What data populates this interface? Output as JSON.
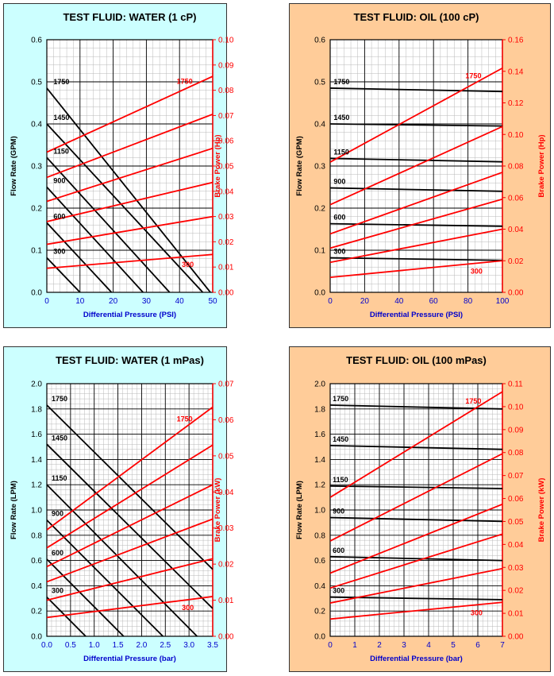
{
  "colors": {
    "water_bg": "#ccffff",
    "oil_bg": "#ffcc99",
    "flow": "#000000",
    "power": "#ff0000",
    "axis_blue": "#0000cc"
  },
  "chart_data": [
    {
      "type": "line",
      "title": "TEST FLUID:  WATER (1 cP)",
      "xlabel": "Differential Pressure (PSI)",
      "ylabel": "Flow Rate (GPM)",
      "y2label": "Brake Power (Hp)",
      "xlim": [
        0,
        50
      ],
      "ylim": [
        0,
        0.6
      ],
      "y2lim": [
        0,
        0.1
      ],
      "xticks": [
        "0",
        "10",
        "20",
        "30",
        "40",
        "50"
      ],
      "yticks": [
        "0.0",
        "0.1",
        "0.2",
        "0.3",
        "0.4",
        "0.5",
        "0.6"
      ],
      "y2ticks": [
        "0.00",
        "0.01",
        "0.02",
        "0.03",
        "0.04",
        "0.05",
        "0.06",
        "0.07",
        "0.08",
        "0.09",
        "0.10"
      ],
      "grid": true,
      "flow_series": [
        {
          "name": "1750",
          "x": [
            0,
            49.3
          ],
          "y": [
            0.485,
            0
          ]
        },
        {
          "name": "1450",
          "x": [
            0,
            47
          ],
          "y": [
            0.4,
            0
          ]
        },
        {
          "name": "1150",
          "x": [
            0,
            37
          ],
          "y": [
            0.32,
            0
          ]
        },
        {
          "name": "900",
          "x": [
            0,
            29
          ],
          "y": [
            0.25,
            0
          ]
        },
        {
          "name": "600",
          "x": [
            0,
            19.5
          ],
          "y": [
            0.165,
            0
          ]
        },
        {
          "name": "300",
          "x": [
            0,
            10
          ],
          "y": [
            0.082,
            0
          ]
        }
      ],
      "power_series": [
        {
          "name": "1750",
          "x": [
            0,
            50
          ],
          "y": [
            0.0555,
            0.0855
          ]
        },
        {
          "name": "1450",
          "x": [
            0,
            50
          ],
          "y": [
            0.0455,
            0.0705
          ]
        },
        {
          "name": "1150",
          "x": [
            0,
            50
          ],
          "y": [
            0.036,
            0.057
          ]
        },
        {
          "name": "900",
          "x": [
            0,
            50
          ],
          "y": [
            0.028,
            0.0435
          ]
        },
        {
          "name": "600",
          "x": [
            0,
            50
          ],
          "y": [
            0.019,
            0.03
          ]
        },
        {
          "name": "300",
          "x": [
            0,
            50
          ],
          "y": [
            0.0095,
            0.015
          ]
        }
      ],
      "flow_label_x": 2,
      "power_label_top": "1750",
      "power_label_bottom": "300"
    },
    {
      "type": "line",
      "title": "TEST FLUID:  OIL (100 cP)",
      "xlabel": "Differential Pressure (PSI)",
      "ylabel": "Flow Rate (GPM)",
      "y2label": "Brake Power (Hp)",
      "xlim": [
        0,
        100
      ],
      "ylim": [
        0,
        0.6
      ],
      "y2lim": [
        0,
        0.16
      ],
      "xticks": [
        "0",
        "20",
        "40",
        "60",
        "80",
        "100"
      ],
      "yticks": [
        "0.0",
        "0.1",
        "0.2",
        "0.3",
        "0.4",
        "0.5",
        "0.6"
      ],
      "y2ticks": [
        "0.00",
        "0.02",
        "0.04",
        "0.06",
        "0.08",
        "0.10",
        "0.12",
        "0.14",
        "0.16"
      ],
      "grid": true,
      "flow_series": [
        {
          "name": "1750",
          "x": [
            0,
            100
          ],
          "y": [
            0.485,
            0.477
          ]
        },
        {
          "name": "1450",
          "x": [
            0,
            100
          ],
          "y": [
            0.4,
            0.395
          ]
        },
        {
          "name": "1150",
          "x": [
            0,
            100
          ],
          "y": [
            0.318,
            0.31
          ]
        },
        {
          "name": "900",
          "x": [
            0,
            100
          ],
          "y": [
            0.248,
            0.24
          ]
        },
        {
          "name": "600",
          "x": [
            0,
            100
          ],
          "y": [
            0.163,
            0.157
          ]
        },
        {
          "name": "300",
          "x": [
            0,
            100
          ],
          "y": [
            0.082,
            0.076
          ]
        }
      ],
      "power_series": [
        {
          "name": "1750",
          "x": [
            0,
            100
          ],
          "y": [
            0.0825,
            0.142
          ]
        },
        {
          "name": "1450",
          "x": [
            0,
            100
          ],
          "y": [
            0.0555,
            0.105
          ]
        },
        {
          "name": "1150",
          "x": [
            0,
            100
          ],
          "y": [
            0.037,
            0.076
          ]
        },
        {
          "name": "900",
          "x": [
            0,
            100
          ],
          "y": [
            0.028,
            0.059
          ]
        },
        {
          "name": "600",
          "x": [
            0,
            100
          ],
          "y": [
            0.019,
            0.04
          ]
        },
        {
          "name": "300",
          "x": [
            0,
            100
          ],
          "y": [
            0.0095,
            0.02
          ]
        }
      ],
      "flow_label_x": 2,
      "power_label_top": "1750",
      "power_label_bottom": "300"
    },
    {
      "type": "line",
      "title": "TEST FLUID:  WATER (1 mPas)",
      "xlabel": "Differential Pressure (bar)",
      "ylabel": "Flow Rate (LPM)",
      "y2label": "Brake Power (kW)",
      "xlim": [
        0,
        3.5
      ],
      "ylim": [
        0,
        2.0
      ],
      "y2lim": [
        0,
        0.07
      ],
      "xticks": [
        "0.0",
        "0.5",
        "1.0",
        "1.5",
        "2.0",
        "2.5",
        "3.0",
        "3.5"
      ],
      "yticks": [
        "0.0",
        "0.2",
        "0.4",
        "0.6",
        "0.8",
        "1.0",
        "1.2",
        "1.4",
        "1.6",
        "1.8",
        "2.0"
      ],
      "y2ticks": [
        "0.00",
        "0.01",
        "0.02",
        "0.03",
        "0.04",
        "0.05",
        "0.06",
        "0.07"
      ],
      "grid": true,
      "flow_series": [
        {
          "name": "1750",
          "x": [
            0,
            3.5
          ],
          "y": [
            1.83,
            0.53
          ]
        },
        {
          "name": "1450",
          "x": [
            0,
            3.5
          ],
          "y": [
            1.52,
            0.22
          ]
        },
        {
          "name": "1150",
          "x": [
            0,
            3.17
          ],
          "y": [
            1.2,
            0
          ]
        },
        {
          "name": "900",
          "x": [
            0,
            2.45
          ],
          "y": [
            0.92,
            0
          ]
        },
        {
          "name": "600",
          "x": [
            0,
            1.62
          ],
          "y": [
            0.61,
            0
          ]
        },
        {
          "name": "300",
          "x": [
            0,
            0.82
          ],
          "y": [
            0.31,
            0
          ]
        }
      ],
      "power_series": [
        {
          "name": "1750",
          "x": [
            0,
            3.5
          ],
          "y": [
            0.0295,
            0.0635
          ]
        },
        {
          "name": "1450",
          "x": [
            0,
            3.5
          ],
          "y": [
            0.0245,
            0.053
          ]
        },
        {
          "name": "1150",
          "x": [
            0,
            3.5
          ],
          "y": [
            0.0193,
            0.042
          ]
        },
        {
          "name": "900",
          "x": [
            0,
            3.5
          ],
          "y": [
            0.0151,
            0.0325
          ]
        },
        {
          "name": "600",
          "x": [
            0,
            3.5
          ],
          "y": [
            0.01,
            0.0215
          ]
        },
        {
          "name": "300",
          "x": [
            0,
            3.5
          ],
          "y": [
            0.0052,
            0.011
          ]
        }
      ],
      "flow_label_x": 0.1,
      "power_label_top": "1750",
      "power_label_bottom": "300"
    },
    {
      "type": "line",
      "title": "TEST FLUID:  OIL (100 mPas)",
      "xlabel": "Differential Pressure (bar)",
      "ylabel": "Flow Rate (LPM)",
      "y2label": "Brake Power (kW)",
      "xlim": [
        0,
        7
      ],
      "ylim": [
        0,
        2.0
      ],
      "y2lim": [
        0,
        0.11
      ],
      "xticks": [
        "0",
        "1",
        "2",
        "3",
        "4",
        "5",
        "6",
        "7"
      ],
      "yticks": [
        "0.0",
        "0.2",
        "0.4",
        "0.6",
        "0.8",
        "1.0",
        "1.2",
        "1.4",
        "1.6",
        "1.8",
        "2.0"
      ],
      "y2ticks": [
        "0.00",
        "0.01",
        "0.02",
        "0.03",
        "0.04",
        "0.05",
        "0.06",
        "0.07",
        "0.08",
        "0.09",
        "0.10",
        "0.11"
      ],
      "grid": true,
      "flow_series": [
        {
          "name": "1750",
          "x": [
            0,
            7
          ],
          "y": [
            1.83,
            1.8
          ]
        },
        {
          "name": "1450",
          "x": [
            0,
            7
          ],
          "y": [
            1.51,
            1.48
          ]
        },
        {
          "name": "1150",
          "x": [
            0,
            7
          ],
          "y": [
            1.19,
            1.17
          ]
        },
        {
          "name": "900",
          "x": [
            0,
            7
          ],
          "y": [
            0.94,
            0.91
          ]
        },
        {
          "name": "600",
          "x": [
            0,
            7
          ],
          "y": [
            0.63,
            0.6
          ]
        },
        {
          "name": "300",
          "x": [
            0,
            7
          ],
          "y": [
            0.31,
            0.29
          ]
        }
      ],
      "power_series": [
        {
          "name": "1750",
          "x": [
            0,
            7
          ],
          "y": [
            0.0605,
            0.1065
          ]
        },
        {
          "name": "1450",
          "x": [
            0,
            7
          ],
          "y": [
            0.0415,
            0.0795
          ]
        },
        {
          "name": "1150",
          "x": [
            0,
            7
          ],
          "y": [
            0.0275,
            0.0575
          ]
        },
        {
          "name": "900",
          "x": [
            0,
            7
          ],
          "y": [
            0.021,
            0.0445
          ]
        },
        {
          "name": "600",
          "x": [
            0,
            7
          ],
          "y": [
            0.0145,
            0.0295
          ]
        },
        {
          "name": "300",
          "x": [
            0,
            7
          ],
          "y": [
            0.0075,
            0.0148
          ]
        }
      ],
      "flow_label_x": 0.1,
      "power_label_top": "1750",
      "power_label_bottom": "300"
    }
  ]
}
